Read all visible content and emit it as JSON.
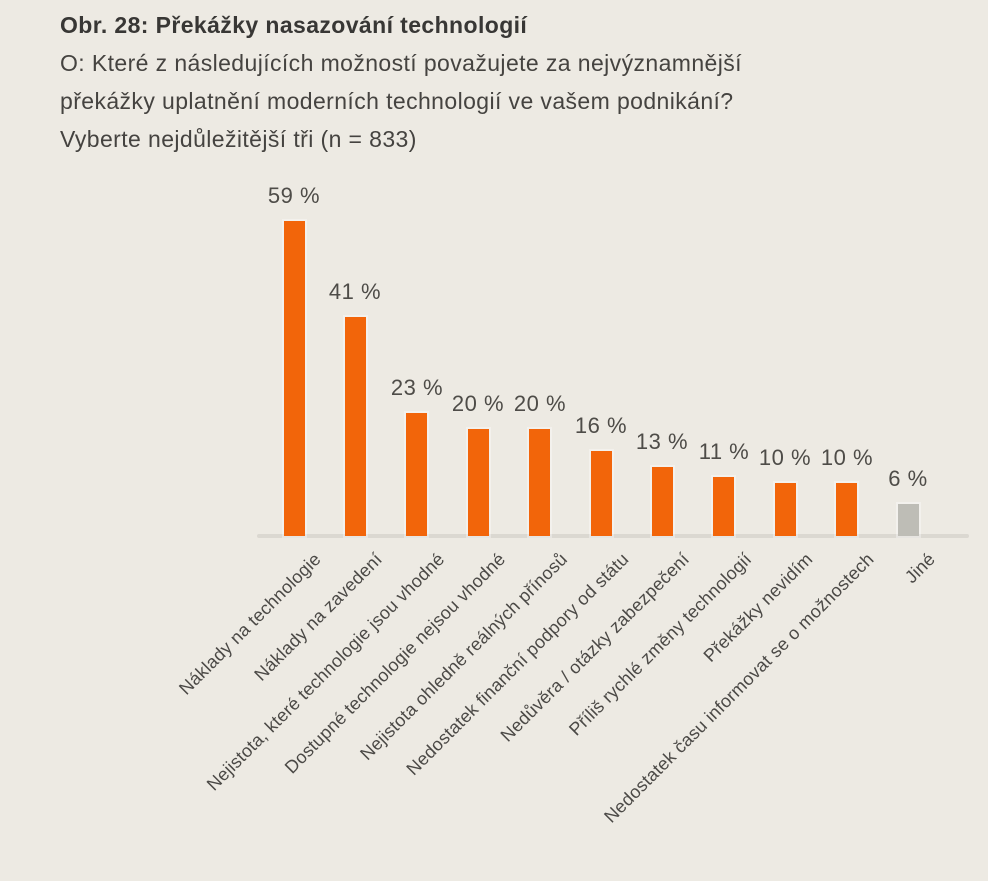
{
  "figure": {
    "title": "Obr. 28: Překážky nasazování technologií",
    "question_lines": [
      "O: Které z následujících možností považujete za nejvýznamnější",
      "překážky uplatnění moderních technologií ve vašem podnikání?",
      "Vyberte nejdůležitější tři (n = 833)"
    ]
  },
  "chart_data": {
    "type": "bar",
    "title": "Obr. 28: Překážky nasazování technologií",
    "question": "O: Které z následujících možností považujete za nejvýznamnější překážky uplatnění moderních technologií ve vašem podnikání? Vyberte nejdůležitější tři (n = 833)",
    "n": 833,
    "unit": "%",
    "categories": [
      "Náklady na technologie",
      "Náklady na zavedení",
      "Nejistota, které technologie jsou vhodné",
      "Dostupné technologie nejsou vhodné",
      "Nejistota ohledně reálných přínosů",
      "Nedostatek finanční podpory od státu",
      "Nedůvěra / otázky zabezpečení",
      "Příliš rychlé změny technologií",
      "Překážky nevidím",
      "Nedostatek času informovat se o možnostech",
      "Jiné"
    ],
    "values": [
      59,
      41,
      23,
      20,
      20,
      16,
      13,
      11,
      10,
      10,
      6
    ],
    "value_labels": [
      "59 %",
      "41 %",
      "23 %",
      "20 %",
      "20 %",
      "16 %",
      "13 %",
      "11 %",
      "10 %",
      "10 %",
      "6 %"
    ],
    "xlabel": "",
    "ylabel": "",
    "ylim": [
      0,
      62
    ],
    "grid": false,
    "legend": false,
    "x_tick_label_rotation_deg": 45,
    "colors": {
      "bar": "#F2650A",
      "other_bar": "#BEBDB6"
    },
    "other_category": "Jiné"
  },
  "style": {
    "background": "#EDEAE3",
    "title_color": "#383735",
    "question_color": "#454340",
    "value_label_color": "#4E4C48",
    "axis_label_color": "#4B4946",
    "axis_line_color": "#DBD8D1"
  }
}
